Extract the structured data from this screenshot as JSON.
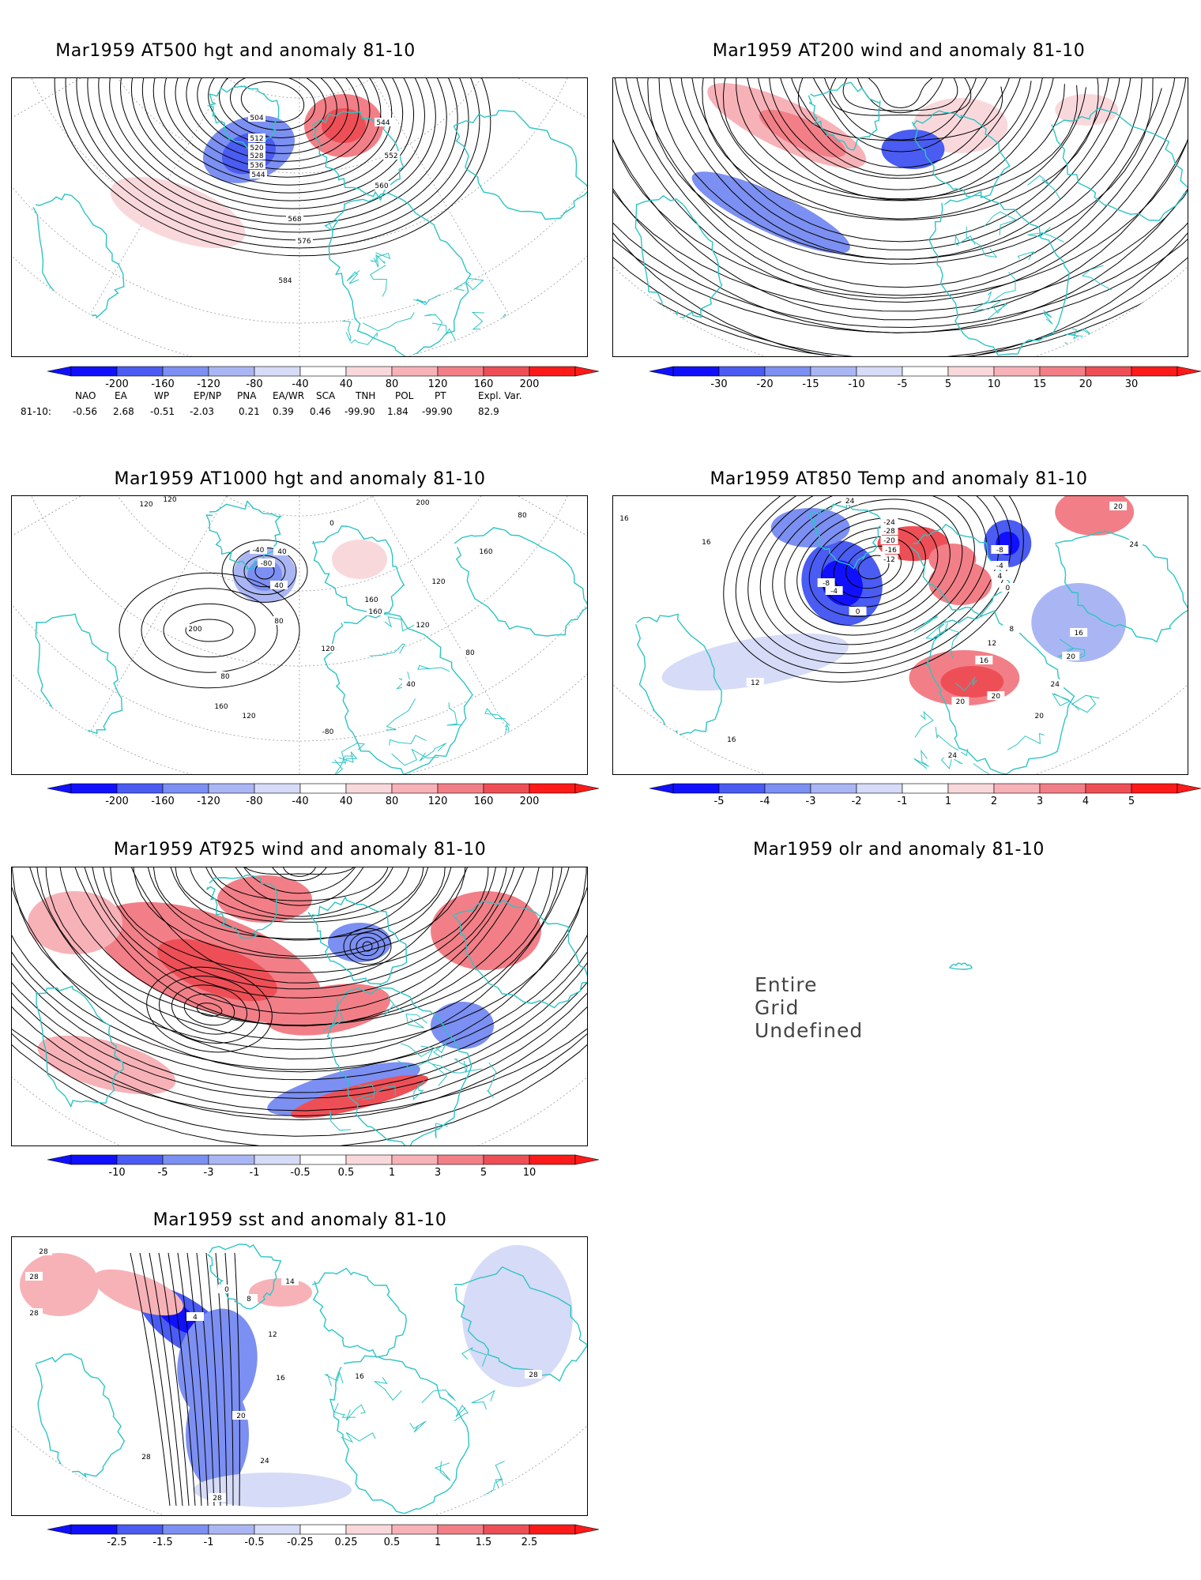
{
  "panels": [
    {
      "id": "p1",
      "title": "Mar1959 AT500 hgt and anomaly 81-10",
      "levels": [
        "-200",
        "-160",
        "-120",
        "-80",
        "-40",
        "40",
        "80",
        "120",
        "160",
        "200"
      ]
    },
    {
      "id": "p2",
      "title": "Mar1959 AT200 wind and anomaly 81-10",
      "levels": [
        "-30",
        "-20",
        "-15",
        "-10",
        "-5",
        "5",
        "10",
        "15",
        "20",
        "30"
      ]
    },
    {
      "id": "p3",
      "title": "Mar1959 AT1000 hgt and anomaly 81-10",
      "levels": [
        "-200",
        "-160",
        "-120",
        "-80",
        "-40",
        "40",
        "80",
        "120",
        "160",
        "200"
      ]
    },
    {
      "id": "p4",
      "title": "Mar1959 AT850 Temp and anomaly 81-10",
      "levels": [
        "-5",
        "-4",
        "-3",
        "-2",
        "-1",
        "1",
        "2",
        "3",
        "4",
        "5"
      ]
    },
    {
      "id": "p5",
      "title": "Mar1959 AT925 wind and anomaly 81-10",
      "levels": [
        "-10",
        "-5",
        "-3",
        "-1",
        "-0.5",
        "0.5",
        "1",
        "3",
        "5",
        "10"
      ]
    },
    {
      "id": "p6",
      "title": "Mar1959 olr and anomaly 81-10",
      "levels": []
    },
    {
      "id": "p7",
      "title": "Mar1959 sst and anomaly 81-10",
      "levels": [
        "-2.5",
        "-1.5",
        "-1",
        "-0.5",
        "-0.25",
        "0.25",
        "0.5",
        "1",
        "1.5",
        "2.5"
      ]
    }
  ],
  "olr_message": "Entire Grid Undefined",
  "index_table": {
    "headers": [
      "NAO",
      "EA",
      "WP",
      "EP/NP",
      "PNA",
      "EA/WR",
      "SCA",
      "TNH",
      "POL",
      "PT",
      "Expl. Var."
    ],
    "row_label": "81-10:",
    "values": [
      "-0.56",
      "2.68",
      "-0.51",
      "-2.03",
      "0.21",
      "0.39",
      "0.46",
      "-99.90",
      "1.84",
      "-99.90",
      "82.9"
    ]
  },
  "contour_labels": {
    "p1": [
      "504",
      "512",
      "520",
      "528",
      "536",
      "544",
      "544",
      "552",
      "560",
      "568",
      "576",
      "584"
    ],
    "p3": [
      "120",
      "120",
      "200",
      "0",
      "-40",
      "40",
      "-80",
      "40",
      "80",
      "160",
      "200",
      "160",
      "120",
      "80",
      "120",
      "160",
      "120",
      "80",
      "40",
      "80",
      "160",
      "120",
      "-80"
    ],
    "p4": [
      "16",
      "16",
      "24",
      "-24",
      "-28",
      "-20",
      "-16",
      "-12",
      "-8",
      "-4",
      "0",
      "-8",
      "-4",
      "4",
      "0",
      "8",
      "12",
      "16",
      "20",
      "24",
      "20",
      "16",
      "20",
      "24",
      "12",
      "16",
      "20",
      "24",
      "20"
    ],
    "p7": [
      "28",
      "28",
      "28",
      "0",
      "4",
      "8",
      "12",
      "16",
      "20",
      "24",
      "28",
      "28",
      "16",
      "14",
      "28"
    ]
  },
  "colors": {
    "coast": "#2ec4c4",
    "neg": [
      "#1010ff",
      "#4a5cf2",
      "#7c8ff2",
      "#aab6f4",
      "#d6dbf7"
    ],
    "pos": [
      "#f9d8dc",
      "#f7b2b8",
      "#f27f87",
      "#ee4f56",
      "#ff1a1a"
    ],
    "contour": "#000000",
    "grid": "#999999"
  }
}
